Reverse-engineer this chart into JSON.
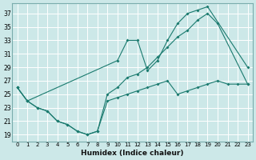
{
  "xlabel": "Humidex (Indice chaleur)",
  "bg_color": "#cce8e8",
  "line_color": "#1a7a6e",
  "grid_color": "#b0d4d4",
  "xlim": [
    -0.5,
    23.5
  ],
  "ylim": [
    18,
    38.5
  ],
  "yticks": [
    19,
    21,
    23,
    25,
    27,
    29,
    31,
    33,
    35,
    37
  ],
  "xticks": [
    0,
    1,
    2,
    3,
    4,
    5,
    6,
    7,
    8,
    9,
    10,
    11,
    12,
    13,
    14,
    15,
    16,
    17,
    18,
    19,
    20,
    21,
    22,
    23
  ],
  "line1_x": [
    0,
    1,
    10,
    11,
    12,
    13,
    14,
    15,
    16,
    17,
    18,
    19,
    23
  ],
  "line1_y": [
    26,
    24,
    30,
    33,
    33,
    28.5,
    30,
    33,
    35.5,
    37,
    37.5,
    38,
    29
  ],
  "line2_x": [
    0,
    1,
    2,
    3,
    4,
    5,
    6,
    7,
    8,
    9,
    10,
    11,
    12,
    13,
    14,
    15,
    16,
    17,
    18,
    19,
    20,
    23
  ],
  "line2_y": [
    26,
    24,
    23,
    22.5,
    21,
    20.5,
    19.5,
    19,
    19.5,
    25,
    26,
    27.5,
    28,
    29,
    30.5,
    32,
    33.5,
    34.5,
    36,
    37,
    35.5,
    26.5
  ],
  "line3_x": [
    0,
    1,
    2,
    3,
    4,
    5,
    6,
    7,
    8,
    9,
    10,
    11,
    12,
    13,
    14,
    15,
    16,
    17,
    18,
    19,
    20,
    21,
    22,
    23
  ],
  "line3_y": [
    26,
    24,
    23,
    22.5,
    21,
    20.5,
    19.5,
    19,
    19.5,
    24,
    24.5,
    25,
    25.5,
    26,
    26.5,
    27,
    25,
    25.5,
    26,
    26.5,
    27,
    26.5,
    26.5,
    26.5
  ]
}
